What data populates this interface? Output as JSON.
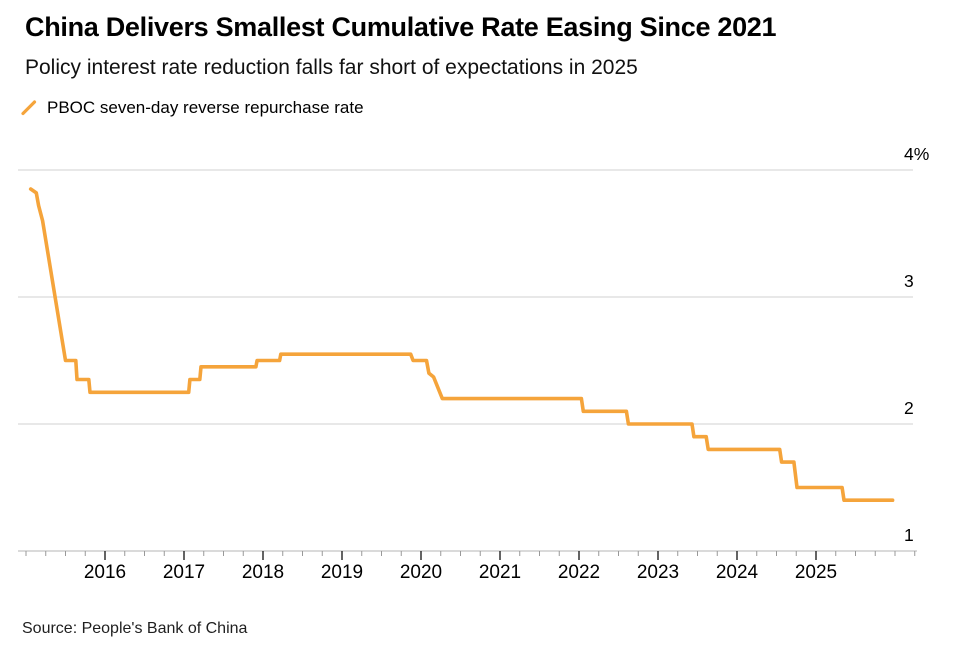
{
  "header": {
    "title": "China Delivers Smallest Cumulative Rate Easing Since 2021",
    "subtitle": "Policy interest rate reduction falls far short of expectations in 2025"
  },
  "legend": {
    "label": "PBOC seven-day reverse repurchase rate"
  },
  "source": {
    "text": "Source: People's Bank of China"
  },
  "colors": {
    "line": "#F5A43B",
    "gridline": "#D9D9D9",
    "axis_line": "#C4C4C4",
    "tick_major": "#222222",
    "tick_minor": "#999999",
    "label_text": "#000000"
  },
  "chart_data": {
    "type": "line",
    "title": "China Delivers Smallest Cumulative Rate Easing Since 2021",
    "subtitle": "Policy interest rate reduction falls far short of expectations in 2025",
    "legend_position": "top-left",
    "grid": "horizontal",
    "series": [
      {
        "name": "PBOC seven-day reverse repurchase rate",
        "color": "#F5A43B",
        "unit": "%",
        "points": [
          [
            2015.06,
            3.85
          ],
          [
            2015.13,
            3.82
          ],
          [
            2015.16,
            3.72
          ],
          [
            2015.21,
            3.6
          ],
          [
            2015.5,
            2.5
          ],
          [
            2015.63,
            2.5
          ],
          [
            2015.645,
            2.35
          ],
          [
            2015.795,
            2.35
          ],
          [
            2015.81,
            2.25
          ],
          [
            2017.06,
            2.25
          ],
          [
            2017.075,
            2.35
          ],
          [
            2017.2,
            2.35
          ],
          [
            2017.215,
            2.45
          ],
          [
            2017.91,
            2.45
          ],
          [
            2017.925,
            2.5
          ],
          [
            2018.21,
            2.5
          ],
          [
            2018.225,
            2.55
          ],
          [
            2019.87,
            2.55
          ],
          [
            2019.9,
            2.5
          ],
          [
            2020.07,
            2.5
          ],
          [
            2020.1,
            2.4
          ],
          [
            2020.16,
            2.37
          ],
          [
            2020.27,
            2.2
          ],
          [
            2022.03,
            2.2
          ],
          [
            2022.055,
            2.1
          ],
          [
            2022.6,
            2.1
          ],
          [
            2022.625,
            2.0
          ],
          [
            2023.43,
            2.0
          ],
          [
            2023.455,
            1.9
          ],
          [
            2023.61,
            1.9
          ],
          [
            2023.635,
            1.8
          ],
          [
            2024.54,
            1.8
          ],
          [
            2024.565,
            1.7
          ],
          [
            2024.72,
            1.7
          ],
          [
            2024.76,
            1.5
          ],
          [
            2025.33,
            1.5
          ],
          [
            2025.355,
            1.4
          ],
          [
            2025.97,
            1.4
          ]
        ]
      }
    ],
    "x_axis": {
      "tick_years": [
        2016,
        2017,
        2018,
        2019,
        2020,
        2021,
        2022,
        2023,
        2024,
        2025
      ],
      "minor_tick_interval_years": 0.25,
      "range": [
        2014.9,
        2026.28
      ]
    },
    "y_axis": {
      "side": "right",
      "range": [
        1,
        4
      ],
      "unit": "%",
      "ticks": [
        {
          "value": 4,
          "label": "4%"
        },
        {
          "value": 3,
          "label": "3"
        },
        {
          "value": 2,
          "label": "2"
        },
        {
          "value": 1,
          "label": "1"
        }
      ]
    }
  }
}
